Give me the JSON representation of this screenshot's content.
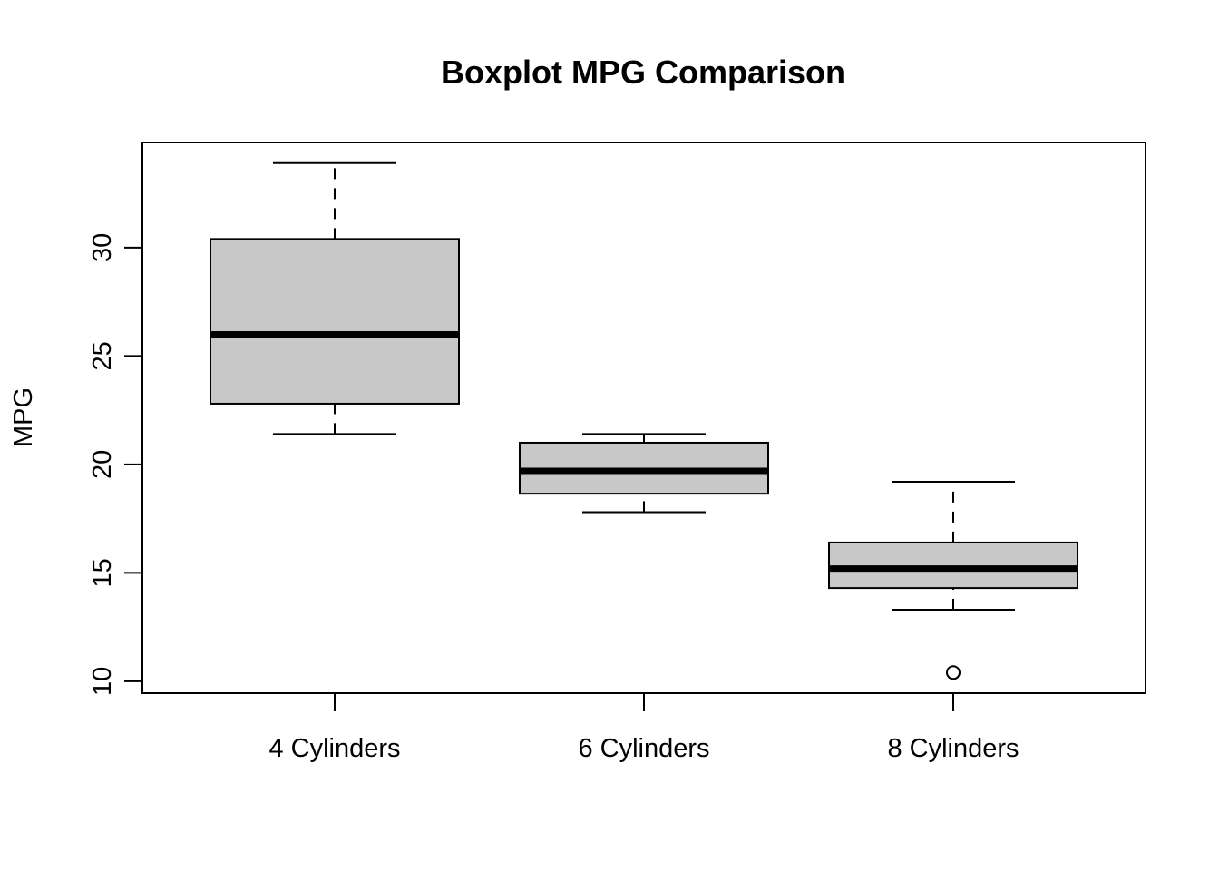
{
  "chart_data": {
    "type": "boxplot",
    "title": "Boxplot MPG Comparison",
    "xlabel": "",
    "ylabel": "MPG",
    "ylim": [
      9.45,
      34.85
    ],
    "yticks": [
      10,
      15,
      20,
      25,
      30
    ],
    "grid": false,
    "categories": [
      "4 Cylinders",
      "6 Cylinders",
      "8 Cylinders"
    ],
    "boxes": [
      {
        "category": "4 Cylinders",
        "whisker_low": 21.4,
        "q1": 22.8,
        "median": 26.0,
        "q3": 30.4,
        "whisker_high": 33.9,
        "outliers": []
      },
      {
        "category": "6 Cylinders",
        "whisker_low": 17.8,
        "q1": 18.65,
        "median": 19.7,
        "q3": 21.0,
        "whisker_high": 21.4,
        "outliers": []
      },
      {
        "category": "8 Cylinders",
        "whisker_low": 13.3,
        "q1": 14.3,
        "median": 15.2,
        "q3": 16.4,
        "whisker_high": 19.2,
        "outliers": [
          10.4
        ]
      }
    ],
    "colors": {
      "box_fill": "#c8c8c8",
      "stroke": "#000000",
      "background": "#ffffff"
    }
  }
}
